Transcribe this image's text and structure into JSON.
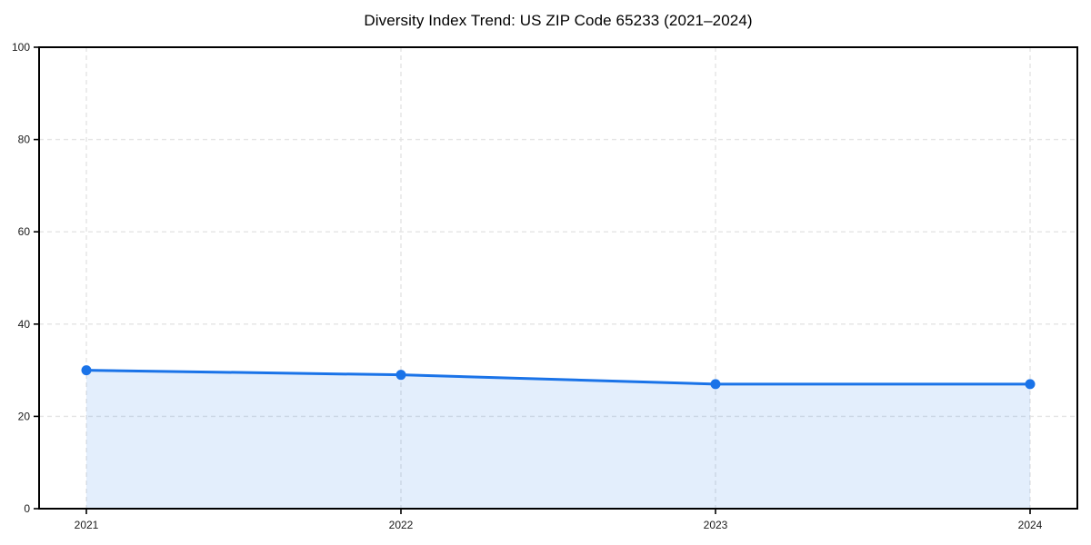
{
  "chart_data": {
    "type": "area",
    "title": "Diversity Index Trend: US ZIP Code 65233 (2021–2024)",
    "categories": [
      "2021",
      "2022",
      "2023",
      "2024"
    ],
    "series": [
      {
        "name": "Diversity Index",
        "values": [
          30,
          29,
          27,
          27
        ]
      }
    ],
    "xlabel": "",
    "ylabel": "",
    "ylim": [
      0,
      100
    ],
    "yticks": [
      0,
      20,
      40,
      60,
      80,
      100
    ],
    "grid": "dashed",
    "legend": "none",
    "marker": "circle",
    "colors": {
      "line": "#1a73e8",
      "marker": "#1a73e8",
      "fill": "rgba(26,115,232,0.12)",
      "grid": "#e4e4e4",
      "spine": "#000000",
      "tick": "#000000",
      "tick_label": "#1a1a1a",
      "title": "#000000",
      "background": "#ffffff"
    }
  }
}
